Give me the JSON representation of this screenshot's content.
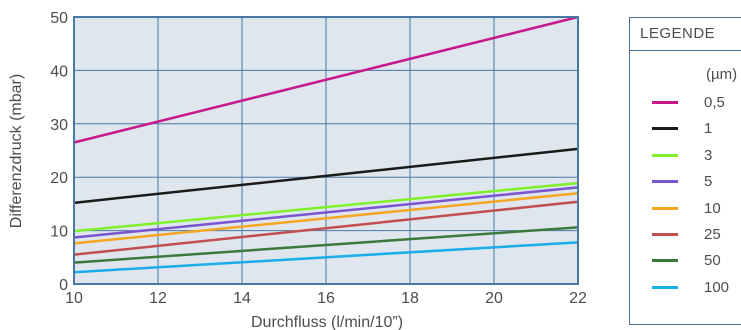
{
  "chart_data": {
    "type": "line",
    "xlabel": "Durchfluss (l/min/10”)",
    "ylabel": "Differenzdruck (mbar)",
    "xlim": [
      10,
      22
    ],
    "ylim": [
      0,
      50
    ],
    "xticks": [
      10,
      12,
      14,
      16,
      18,
      20,
      22
    ],
    "yticks": [
      0,
      10,
      20,
      30,
      40,
      50
    ],
    "grid": true,
    "plot_background": "#dfe6ee",
    "grid_color": "#4a78a6",
    "legend_placement": "right",
    "series": [
      {
        "name": "0,5",
        "color": "#c8198a",
        "x": [
          10,
          22
        ],
        "y": [
          26.5,
          50
        ]
      },
      {
        "name": "1",
        "color": "#1a1a1a",
        "x": [
          10,
          22
        ],
        "y": [
          15.2,
          25.3
        ]
      },
      {
        "name": "3",
        "color": "#7ff02a",
        "x": [
          10,
          22
        ],
        "y": [
          9.9,
          18.9
        ]
      },
      {
        "name": "5",
        "color": "#7a55d0",
        "x": [
          10,
          22
        ],
        "y": [
          8.7,
          18.1
        ]
      },
      {
        "name": "10",
        "color": "#f5a623",
        "x": [
          10,
          22
        ],
        "y": [
          7.6,
          17.0
        ]
      },
      {
        "name": "25",
        "color": "#c0504d",
        "x": [
          10,
          22
        ],
        "y": [
          5.5,
          15.4
        ]
      },
      {
        "name": "50",
        "color": "#3a7a3a",
        "x": [
          10,
          22
        ],
        "y": [
          4.0,
          10.6
        ]
      },
      {
        "name": "100",
        "color": "#19aee8",
        "x": [
          10,
          22
        ],
        "y": [
          2.2,
          7.8
        ]
      }
    ]
  },
  "legend": {
    "title": "LEGENDE",
    "unit": "(µm)"
  }
}
